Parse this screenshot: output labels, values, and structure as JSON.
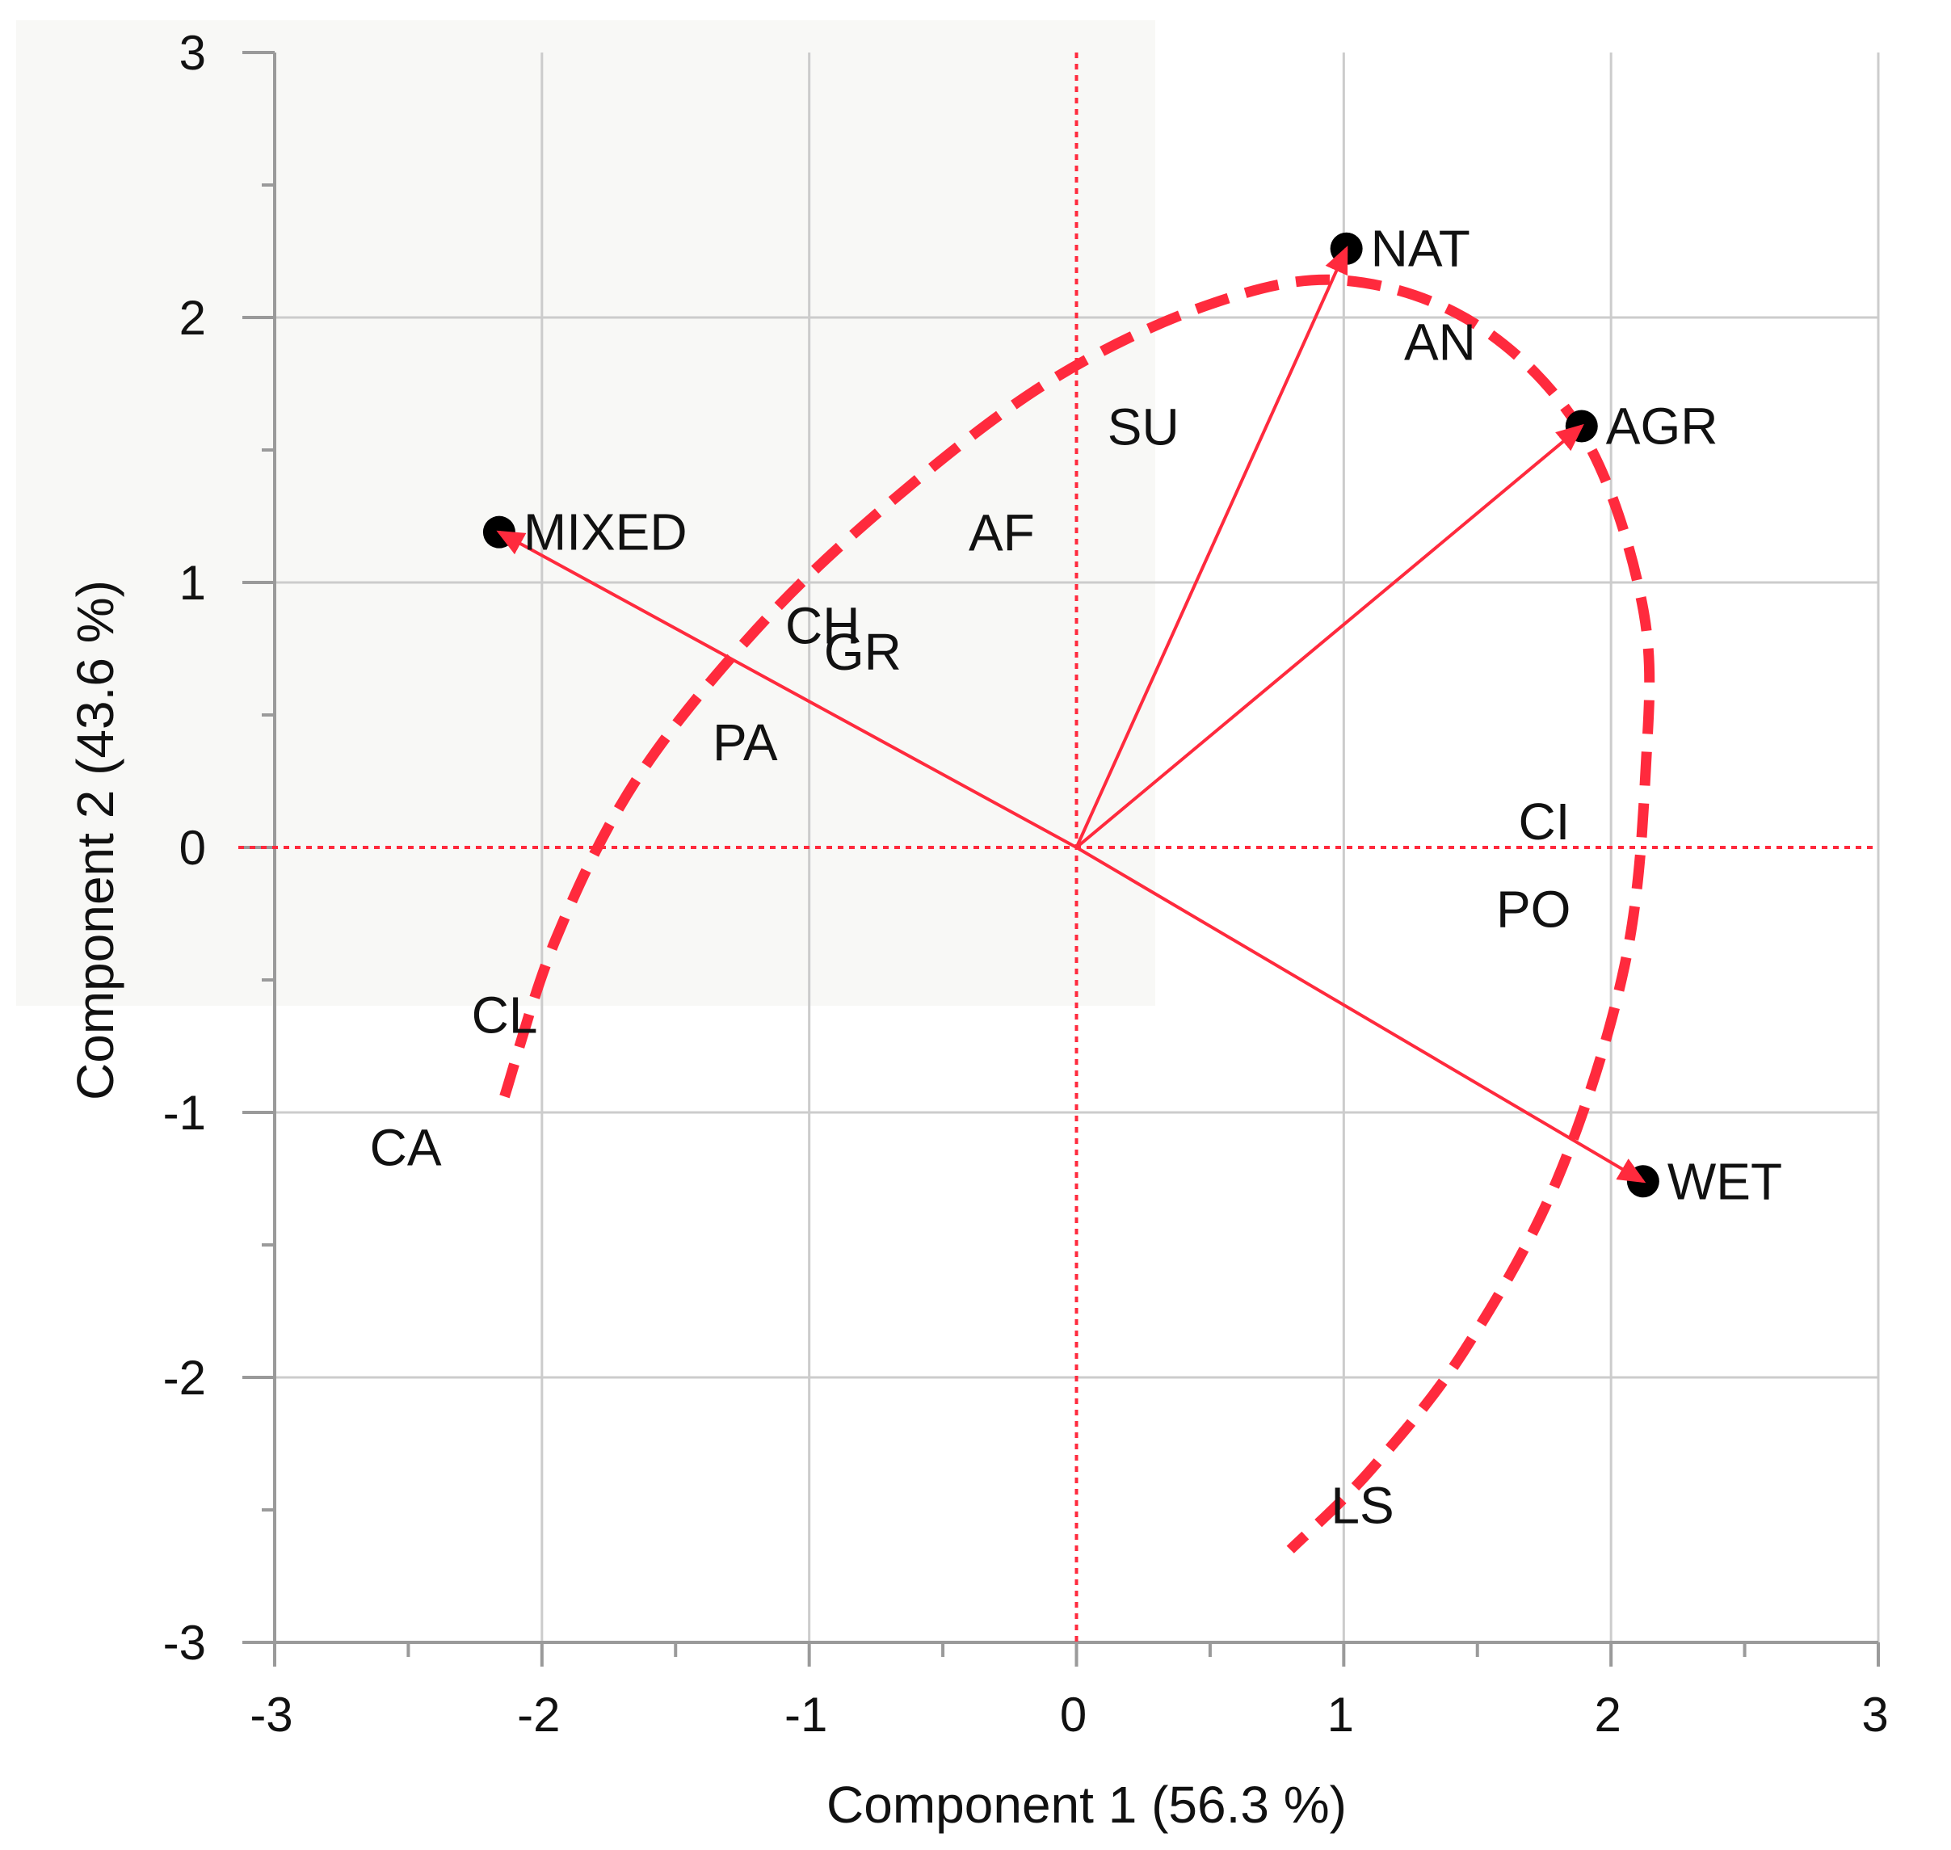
{
  "chart_data": {
    "type": "scatter",
    "title": "",
    "xlabel": "Component 1  (56.3 %)",
    "ylabel": "Component 2  (43.6 %)",
    "xlim": [
      -3,
      3
    ],
    "ylim": [
      -3,
      3
    ],
    "x_ticks": [
      "-3",
      "-2",
      "-1",
      "0",
      "1",
      "2",
      "3"
    ],
    "y_ticks": [
      "3",
      "2",
      "1",
      "0",
      "-1",
      "-2",
      "-3"
    ],
    "grid": true,
    "colors": {
      "accent": "#ff2a3d",
      "grid": "#cccccc",
      "axis": "#9a9a9a",
      "point": "#000000"
    },
    "vectors": [
      {
        "label": "NAT",
        "x": 1.01,
        "y": 2.26
      },
      {
        "label": "AGR",
        "x": 1.89,
        "y": 1.59
      },
      {
        "label": "MIXED",
        "x": -2.16,
        "y": 1.19
      },
      {
        "label": "WET",
        "x": 2.12,
        "y": -1.26
      }
    ],
    "labels": [
      {
        "label": "AN",
        "x": 1.36,
        "y": 1.84
      },
      {
        "label": "SU",
        "x": 0.25,
        "y": 1.52
      },
      {
        "label": "AF",
        "x": -0.28,
        "y": 1.12
      },
      {
        "label": "CH",
        "x": -0.95,
        "y": 0.77
      },
      {
        "label": "GR",
        "x": -0.8,
        "y": 0.67
      },
      {
        "label": "PA",
        "x": -1.24,
        "y": 0.33
      },
      {
        "label": "CI",
        "x": 1.75,
        "y": 0.03
      },
      {
        "label": "PO",
        "x": 1.71,
        "y": -0.3
      },
      {
        "label": "CL",
        "x": -2.14,
        "y": -0.7
      },
      {
        "label": "CA",
        "x": -2.51,
        "y": -1.2
      },
      {
        "label": "LS",
        "x": 1.07,
        "y": -2.55
      }
    ],
    "curve": [
      [
        -2.14,
        -0.94
      ],
      [
        -1.95,
        -0.35
      ],
      [
        -1.65,
        0.25
      ],
      [
        -1.2,
        0.82
      ],
      [
        -0.7,
        1.3
      ],
      [
        -0.1,
        1.76
      ],
      [
        0.5,
        2.05
      ],
      [
        1.0,
        2.14
      ],
      [
        1.5,
        1.97
      ],
      [
        1.9,
        1.55
      ],
      [
        2.12,
        0.9
      ],
      [
        2.13,
        0.3
      ],
      [
        2.05,
        -0.45
      ],
      [
        1.8,
        -1.25
      ],
      [
        1.45,
        -1.9
      ],
      [
        1.1,
        -2.35
      ],
      [
        0.8,
        -2.65
      ]
    ]
  }
}
